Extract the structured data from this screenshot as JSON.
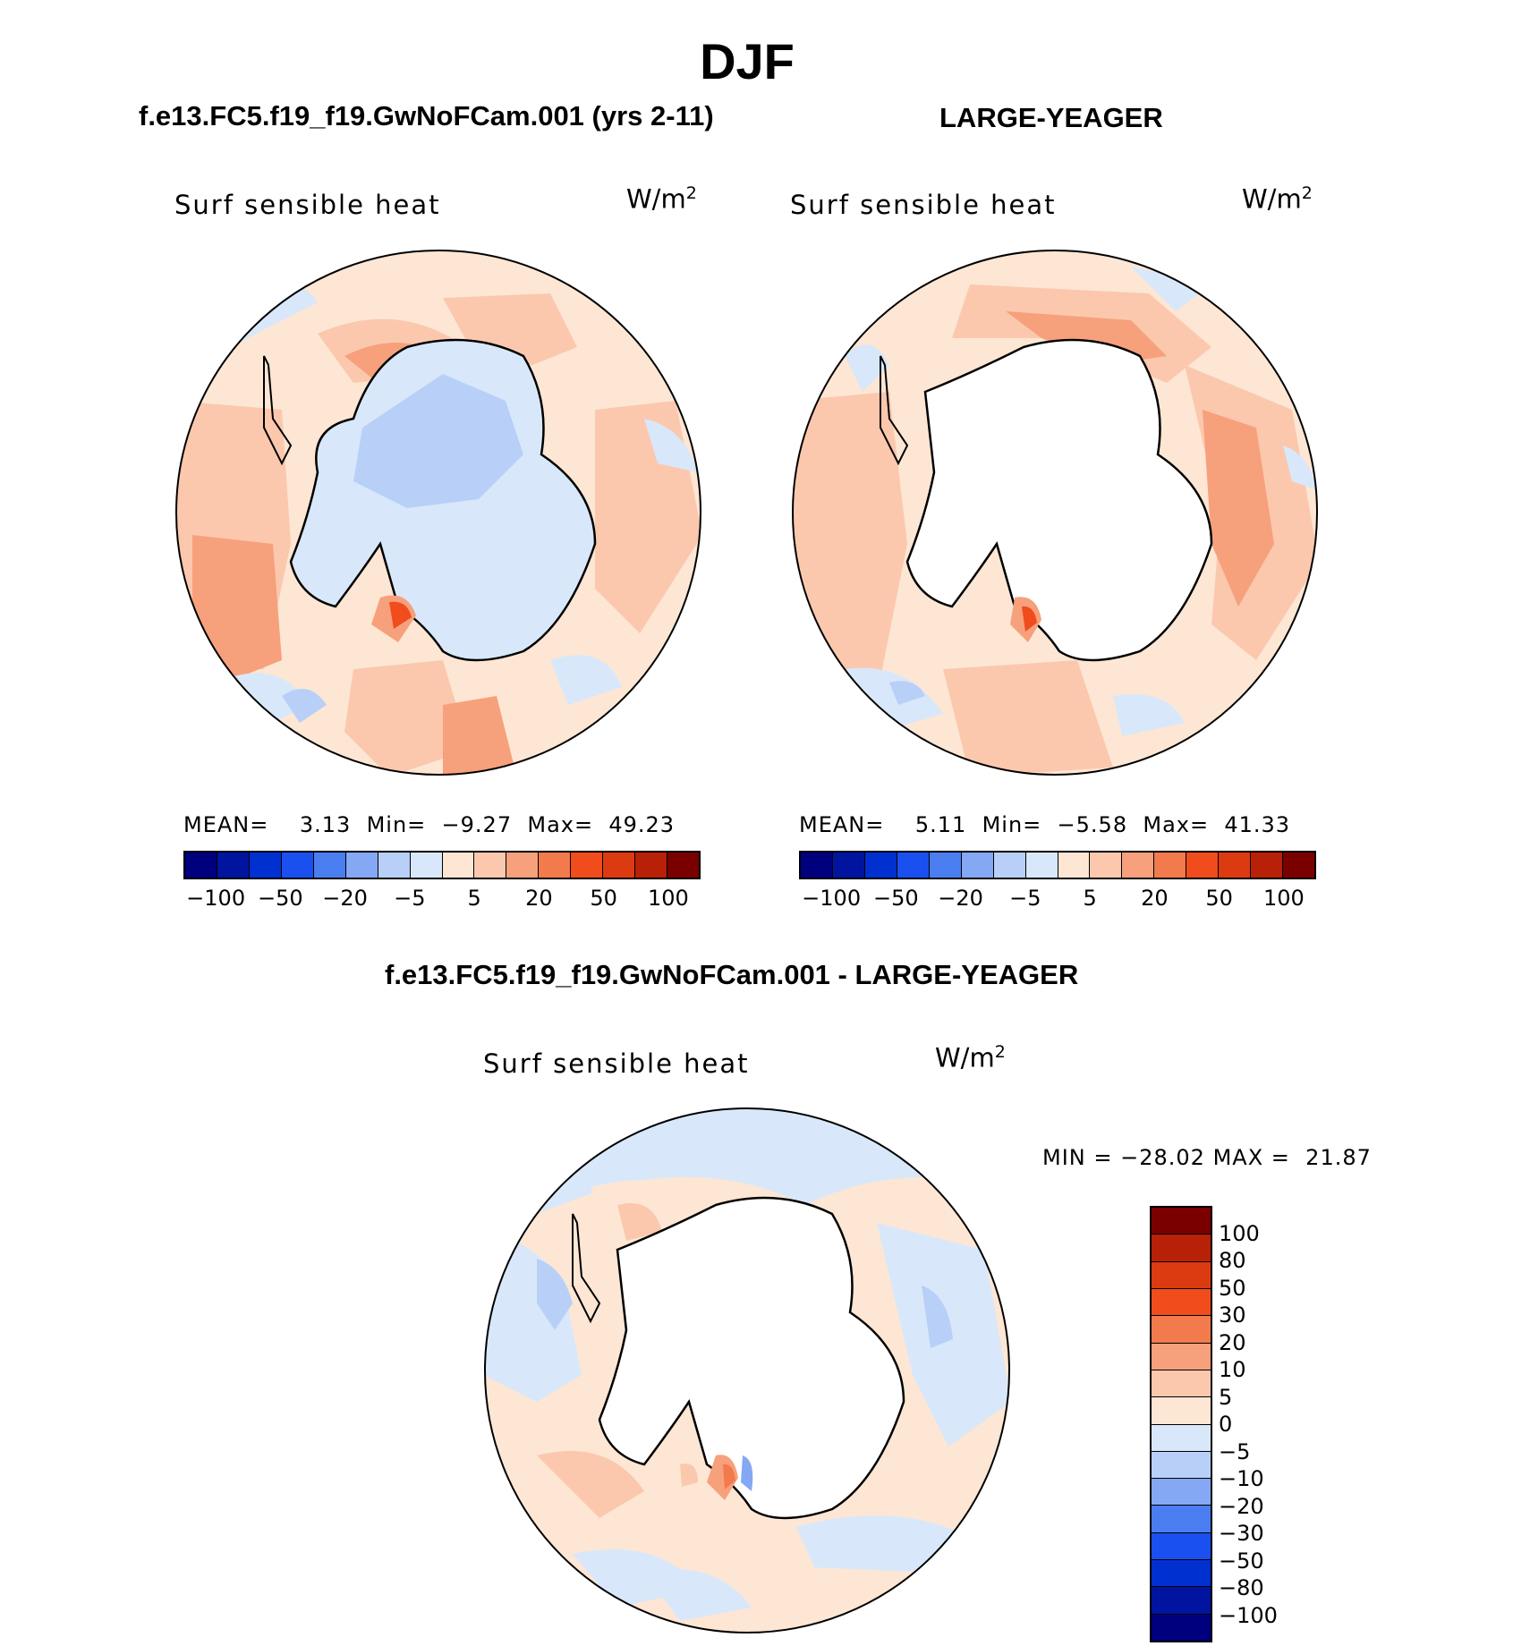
{
  "title": "DJF",
  "panels": [
    {
      "case_title": "f.e13.FC5.f19_f19.GwNoFCam.001 (yrs 2-11)",
      "variable": "Surf sensible heat",
      "units": "W/m",
      "units_exp": "2",
      "stats": {
        "mean_label": "MEAN=",
        "mean": "3.13",
        "min_label": "Min=",
        "min": "−9.27",
        "max_label": "Max=",
        "max": "49.23"
      }
    },
    {
      "case_title": "LARGE-YEAGER",
      "variable": "Surf sensible heat",
      "units": "W/m",
      "units_exp": "2",
      "stats": {
        "mean_label": "MEAN=",
        "mean": "5.11",
        "min_label": "Min=",
        "min": "−5.58",
        "max_label": "Max=",
        "max": "41.33"
      }
    },
    {
      "case_title": "f.e13.FC5.f19_f19.GwNoFCam.001 - LARGE-YEAGER",
      "variable": "Surf sensible heat",
      "units": "W/m",
      "units_exp": "2",
      "minmax": {
        "min_label": "MIN =",
        "min": "−28.02",
        "max_label": "MAX =",
        "max": "21.87"
      }
    }
  ],
  "colorbar_top": {
    "colors": [
      "#00007f",
      "#0014a0",
      "#0030d0",
      "#1a50f0",
      "#4a7ef0",
      "#84a8f4",
      "#b8d0f8",
      "#d8e8fa",
      "#fde6d4",
      "#fbc8ae",
      "#f7a07c",
      "#f27a4c",
      "#f04c1c",
      "#dc3a10",
      "#b82008",
      "#7a0000"
    ],
    "tick_labels": [
      "−100",
      "−50",
      "−20",
      "−5",
      "5",
      "20",
      "50",
      "100"
    ]
  },
  "colorbar_diff": {
    "colors": [
      "#7a0000",
      "#b82008",
      "#dc3a10",
      "#f04c1c",
      "#f27a4c",
      "#f7a07c",
      "#fbc8ae",
      "#fde6d4",
      "#d8e8fa",
      "#b8d0f8",
      "#84a8f4",
      "#4a7ef0",
      "#1a50f0",
      "#0030d0",
      "#0014a0",
      "#00007f"
    ],
    "tick_labels": [
      "100",
      "80",
      "50",
      "30",
      "20",
      "10",
      "5",
      "0",
      "−5",
      "−10",
      "−20",
      "−30",
      "−50",
      "−80",
      "−100"
    ]
  },
  "map_colors": {
    "land_white": "#ffffff",
    "neg_light": "#d8e8fa",
    "neg_mid": "#b8d0f8",
    "neg_dark": "#84a8f4",
    "pos_light": "#fde6d4",
    "pos_mid": "#fbc8ae",
    "pos_dark": "#f7a07c",
    "pos_strong": "#f27a4c",
    "pos_max": "#f04c1c"
  }
}
